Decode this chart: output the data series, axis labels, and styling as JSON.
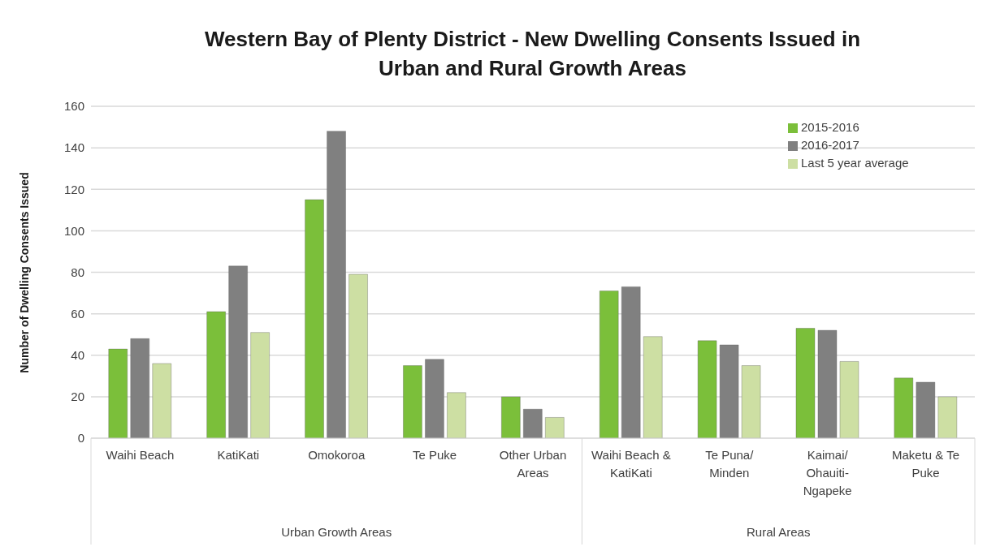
{
  "chart_data": {
    "type": "bar",
    "title": "Western Bay of Plenty District - New Dwelling Consents Issued in Urban and Rural Growth Areas",
    "ylabel": "Number of Dwelling Consents Issued",
    "categories": [
      "Waihi Beach",
      "KatiKati",
      "Omokoroa",
      "Te Puke",
      "Other Urban Areas",
      "Waihi Beach & KatiKati",
      "Te Puna/ Minden",
      "Kaimai/ Ohauiti-Ngapeke",
      "Maketu & Te Puke"
    ],
    "series": [
      {
        "name": "2015-2016",
        "color": "#7bbf3a",
        "values": [
          43,
          61,
          115,
          35,
          20,
          71,
          47,
          53,
          29
        ]
      },
      {
        "name": "2016-2017",
        "color": "#808080",
        "values": [
          48,
          83,
          148,
          38,
          14,
          73,
          45,
          52,
          27
        ]
      },
      {
        "name": "Last 5 year average",
        "color": "#cddfa3",
        "values": [
          36,
          51,
          79,
          22,
          10,
          49,
          35,
          37,
          20
        ]
      }
    ],
    "annotations": [
      "Urban Growth Areas",
      "Rural Areas"
    ],
    "ylim": [
      0,
      160
    ],
    "yticks": [
      0,
      20,
      40,
      60,
      80,
      100,
      120,
      140,
      160
    ],
    "grid": "y",
    "legend": "top right"
  }
}
